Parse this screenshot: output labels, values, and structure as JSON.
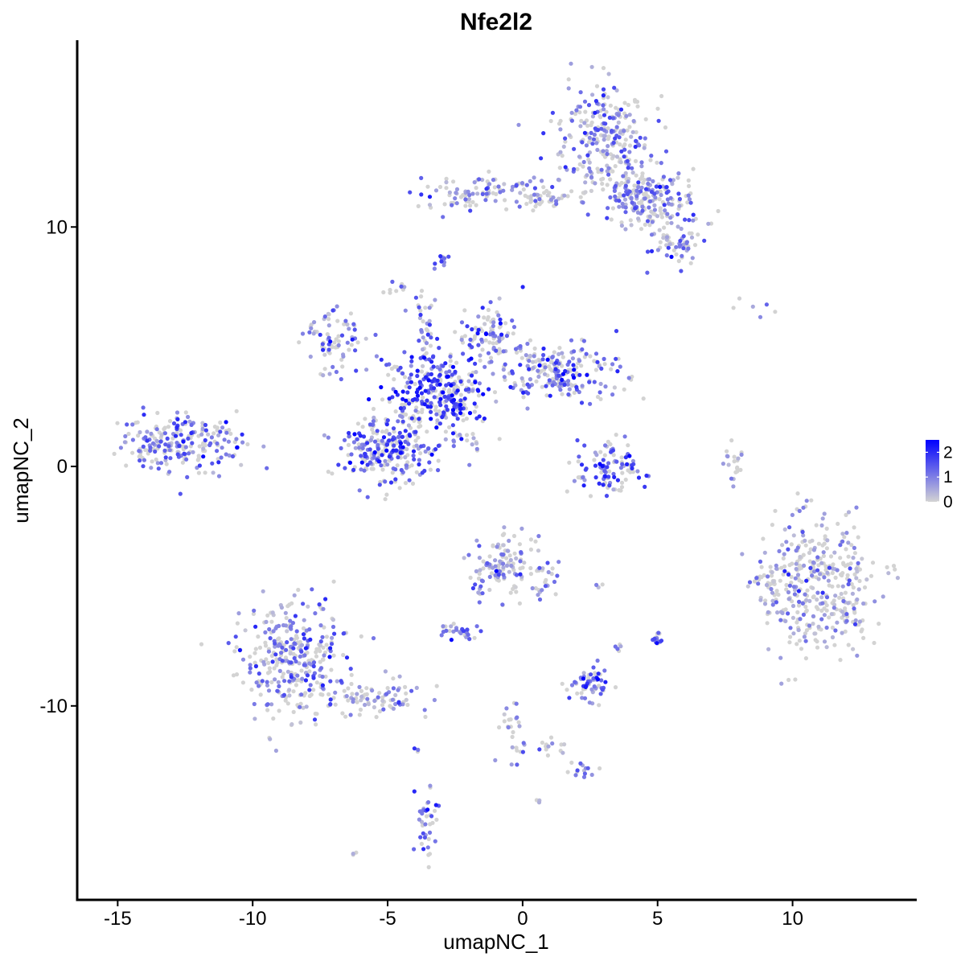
{
  "chart_data": {
    "type": "scatter",
    "title": "Nfe2l2",
    "xlabel": "umapNC_1",
    "ylabel": "umapNC_2",
    "xlim": [
      -16.5,
      14.6
    ],
    "ylim": [
      -18.1,
      17.8
    ],
    "x_ticks": [
      -15,
      -10,
      -5,
      0,
      5,
      10
    ],
    "y_ticks": [
      -10,
      0,
      10
    ],
    "tick_labels_x": [
      "-15",
      "-10",
      "-5",
      "0",
      "5",
      "10"
    ],
    "tick_labels_y": [
      "-10",
      "0",
      "10"
    ],
    "grid": false,
    "color_scale": {
      "low_color": "#d3d3d3",
      "high_color": "#0000ff",
      "min": 0,
      "max": 2.5,
      "ticks": [
        0,
        1,
        2
      ],
      "tick_labels": [
        "0",
        "1",
        "2"
      ],
      "legend_position": "right"
    },
    "clusters": [
      {
        "x": 3.0,
        "y": 13.8,
        "sx": 0.9,
        "sy": 1.1,
        "n": 260,
        "expr": 0.9
      },
      {
        "x": 4.6,
        "y": 11.2,
        "sx": 0.9,
        "sy": 0.6,
        "n": 200,
        "expr": 0.8
      },
      {
        "x": 5.7,
        "y": 9.4,
        "sx": 0.5,
        "sy": 0.4,
        "n": 60,
        "expr": 0.8
      },
      {
        "x": -1.8,
        "y": 11.4,
        "sx": 1.2,
        "sy": 0.35,
        "n": 90,
        "expr": 0.6
      },
      {
        "x": 0.8,
        "y": 11.2,
        "sx": 0.8,
        "sy": 0.3,
        "n": 50,
        "expr": 0.5
      },
      {
        "x": -2.9,
        "y": 8.6,
        "sx": 0.15,
        "sy": 0.15,
        "n": 12,
        "expr": 1.3
      },
      {
        "x": -4.7,
        "y": 7.4,
        "sx": 0.2,
        "sy": 0.15,
        "n": 10,
        "expr": 0.6
      },
      {
        "x": -3.2,
        "y": 3.0,
        "sx": 0.9,
        "sy": 0.8,
        "n": 300,
        "expr": 1.7
      },
      {
        "x": -5.0,
        "y": 0.6,
        "sx": 1.0,
        "sy": 0.7,
        "n": 250,
        "expr": 1.4
      },
      {
        "x": -7.0,
        "y": 5.3,
        "sx": 0.6,
        "sy": 0.6,
        "n": 80,
        "expr": 0.9
      },
      {
        "x": 1.2,
        "y": 4.0,
        "sx": 1.2,
        "sy": 0.6,
        "n": 220,
        "expr": 1.2
      },
      {
        "x": -1.2,
        "y": 5.6,
        "sx": 0.5,
        "sy": 0.6,
        "n": 90,
        "expr": 1.2
      },
      {
        "x": -3.7,
        "y": 5.8,
        "sx": 0.2,
        "sy": 1.2,
        "n": 40,
        "expr": 1.0
      },
      {
        "x": -2.2,
        "y": 1.4,
        "sx": 0.5,
        "sy": 0.6,
        "n": 30,
        "expr": 1.0
      },
      {
        "x": 3.2,
        "y": -0.2,
        "sx": 0.7,
        "sy": 0.6,
        "n": 110,
        "expr": 1.4
      },
      {
        "x": 7.9,
        "y": 0.3,
        "sx": 0.2,
        "sy": 0.5,
        "n": 20,
        "expr": 0.2
      },
      {
        "x": 8.7,
        "y": 6.5,
        "sx": 0.6,
        "sy": 0.3,
        "n": 6,
        "expr": 0.1
      },
      {
        "x": -12.8,
        "y": 1.0,
        "sx": 1.1,
        "sy": 0.6,
        "n": 230,
        "expr": 1.0
      },
      {
        "x": 11.0,
        "y": -5.0,
        "sx": 1.1,
        "sy": 1.4,
        "n": 380,
        "expr": 0.5
      },
      {
        "x": 9.0,
        "y": -4.8,
        "sx": 0.3,
        "sy": 0.3,
        "n": 25,
        "expr": 0.4
      },
      {
        "x": -8.5,
        "y": -8.0,
        "sx": 1.0,
        "sy": 1.2,
        "n": 330,
        "expr": 1.0
      },
      {
        "x": -5.7,
        "y": -9.7,
        "sx": 1.0,
        "sy": 0.4,
        "n": 90,
        "expr": 0.7
      },
      {
        "x": -0.7,
        "y": -4.0,
        "sx": 0.5,
        "sy": 0.6,
        "n": 110,
        "expr": 0.8
      },
      {
        "x": 0.9,
        "y": -4.6,
        "sx": 0.3,
        "sy": 0.6,
        "n": 30,
        "expr": 0.9
      },
      {
        "x": -1.5,
        "y": -5.4,
        "sx": 0.2,
        "sy": 0.5,
        "n": 12,
        "expr": 0.8
      },
      {
        "x": -2.4,
        "y": -6.9,
        "sx": 0.3,
        "sy": 0.2,
        "n": 30,
        "expr": 1.1
      },
      {
        "x": 2.5,
        "y": -9.0,
        "sx": 0.4,
        "sy": 0.4,
        "n": 60,
        "expr": 1.2
      },
      {
        "x": 5.0,
        "y": -7.3,
        "sx": 0.1,
        "sy": 0.2,
        "n": 15,
        "expr": 1.4
      },
      {
        "x": 3.5,
        "y": -7.6,
        "sx": 0.1,
        "sy": 0.1,
        "n": 5,
        "expr": 0.5
      },
      {
        "x": -0.3,
        "y": -11.0,
        "sx": 0.3,
        "sy": 0.8,
        "n": 25,
        "expr": 0.6
      },
      {
        "x": 0.8,
        "y": -11.7,
        "sx": 0.6,
        "sy": 0.2,
        "n": 15,
        "expr": 0.5
      },
      {
        "x": 2.2,
        "y": -12.6,
        "sx": 0.3,
        "sy": 0.2,
        "n": 15,
        "expr": 0.9
      },
      {
        "x": -3.5,
        "y": -14.8,
        "sx": 0.2,
        "sy": 0.7,
        "n": 40,
        "expr": 1.1
      },
      {
        "x": -3.9,
        "y": -11.9,
        "sx": 0.05,
        "sy": 0.1,
        "n": 3,
        "expr": 1.0
      },
      {
        "x": 0.6,
        "y": -14.0,
        "sx": 0.05,
        "sy": 0.05,
        "n": 3,
        "expr": 0.8
      },
      {
        "x": -6.2,
        "y": -16.2,
        "sx": 0.05,
        "sy": 0.05,
        "n": 3,
        "expr": 0.7
      },
      {
        "x": 2.8,
        "y": -5.0,
        "sx": 0.1,
        "sy": 0.05,
        "n": 3,
        "expr": 0.6
      }
    ]
  }
}
